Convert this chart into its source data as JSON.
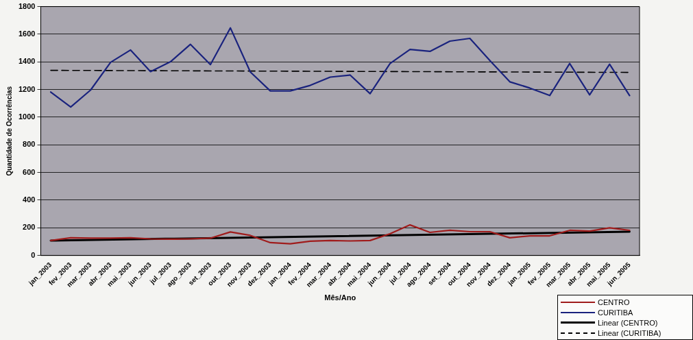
{
  "chart_data": {
    "type": "line",
    "xlabel": "Mês/Ano",
    "ylabel": "Quantidade de Ocorrências",
    "categories": [
      "jan_2003",
      "fev_2003",
      "mar_2003",
      "abr_2003",
      "mai_2003",
      "jun_2003",
      "jul_2003",
      "ago_2003",
      "set_2003",
      "out_2003",
      "nov_2003",
      "dez_2003",
      "jan_2004",
      "fev_2004",
      "mar_2004",
      "abr_2004",
      "mai_2004",
      "jun_2004",
      "jul_2004",
      "ago_2004",
      "set_2004",
      "out_2004",
      "nov_2004",
      "dez_2004",
      "jan_2005",
      "fev_2005",
      "mar_2005",
      "abr_2005",
      "mai_2005",
      "jun_2005"
    ],
    "series": [
      {
        "name": "CENTRO",
        "color": "#a01c1c",
        "values": [
          108,
          128,
          125,
          125,
          128,
          120,
          118,
          120,
          125,
          170,
          145,
          93,
          85,
          103,
          108,
          105,
          108,
          157,
          221,
          167,
          182,
          172,
          172,
          128,
          142,
          142,
          182,
          176,
          200,
          182
        ]
      },
      {
        "name": "CURITIBA",
        "color": "#1a237e",
        "values": [
          1182,
          1074,
          1197,
          1397,
          1486,
          1330,
          1401,
          1527,
          1380,
          1646,
          1327,
          1190,
          1190,
          1230,
          1290,
          1305,
          1170,
          1388,
          1490,
          1476,
          1550,
          1570,
          1410,
          1256,
          1211,
          1157,
          1388,
          1162,
          1383,
          1157
        ]
      },
      {
        "name": "Linear (CENTRO)",
        "type": "line",
        "color": "#000000",
        "line_style": "solid",
        "x": [
          "jan_2003",
          "jun_2005"
        ],
        "values": [
          108,
          172
        ]
      },
      {
        "name": "Linear (CURITIBA)",
        "type": "line",
        "color": "#000000",
        "line_style": "dashed",
        "x": [
          "jan_2003",
          "jun_2005"
        ],
        "values": [
          1339,
          1324
        ]
      }
    ],
    "ylim": [
      0,
      1800
    ],
    "yticks": [
      0,
      200,
      400,
      600,
      800,
      1000,
      1200,
      1400,
      1600,
      1800
    ],
    "grid": "y",
    "legend": "bottom right",
    "marker": "none",
    "line_style": "solid"
  }
}
